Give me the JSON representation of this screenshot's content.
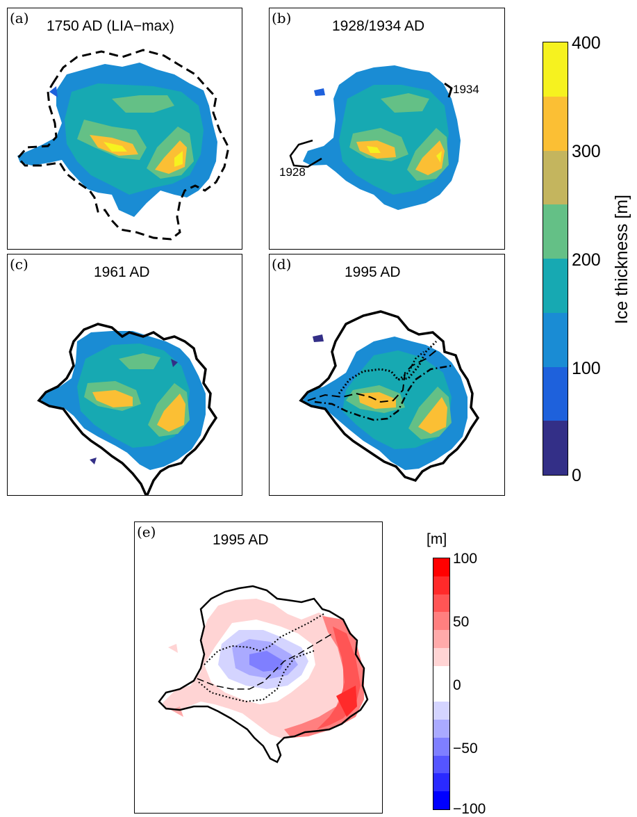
{
  "panels": [
    {
      "label": "(a)",
      "title": "1750 AD (LIA−max)"
    },
    {
      "label": "(b)",
      "title": "1928/1934 AD",
      "annotations": [
        "1934",
        "1928"
      ]
    },
    {
      "label": "(c)",
      "title": "1961 AD"
    },
    {
      "label": "(d)",
      "title": "1995 AD"
    },
    {
      "label": "(e)",
      "title": "1995 AD"
    }
  ],
  "thickness_colorbar": {
    "title": "Ice thickness [m]",
    "ticks": [
      "400",
      "300",
      "200",
      "100",
      "0"
    ],
    "colors": [
      "#f6f21f",
      "#fbbf34",
      "#c4b55e",
      "#64c086",
      "#17a9b2",
      "#1a8cd4",
      "#1e61dc",
      "#332f87"
    ]
  },
  "difference_colorbar": {
    "title": "[m]",
    "ticks": [
      "100",
      "50",
      "0",
      "−50",
      "−100"
    ],
    "colors": [
      "#ff0000",
      "#ff2a2a",
      "#ff5555",
      "#ff7f7f",
      "#ffaaaa",
      "#ffd4d4",
      "#ffffff",
      "#ffffff",
      "#d4d4ff",
      "#aaaaff",
      "#7f7fff",
      "#5555ff",
      "#2a2aff",
      "#0000ff"
    ]
  }
}
